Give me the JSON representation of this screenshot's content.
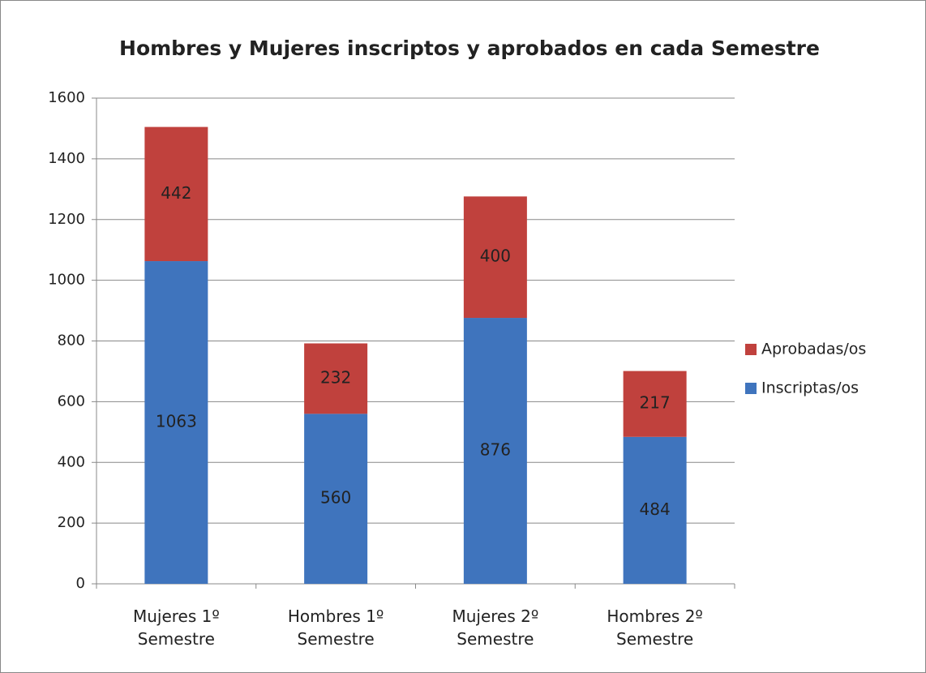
{
  "chart_data": {
    "type": "stacked_bar",
    "title": "Hombres y Mujeres inscriptos y aprobados en cada Semestre",
    "categories": [
      "Mujeres 1º Semestre",
      "Hombres 1º Semestre",
      "Mujeres 2º Semestre",
      "Hombres 2º Semestre"
    ],
    "series": [
      {
        "name": "Inscriptas/os",
        "color": "#3f74bd",
        "values": [
          1063,
          560,
          876,
          484
        ]
      },
      {
        "name": "Aprobadas/os",
        "color": "#c0413d",
        "values": [
          442,
          232,
          400,
          217
        ]
      }
    ],
    "ylim": [
      0,
      1600
    ],
    "yticks": [
      0,
      200,
      400,
      600,
      800,
      1000,
      1200,
      1400,
      1600
    ],
    "grid": true,
    "legend": "right"
  }
}
